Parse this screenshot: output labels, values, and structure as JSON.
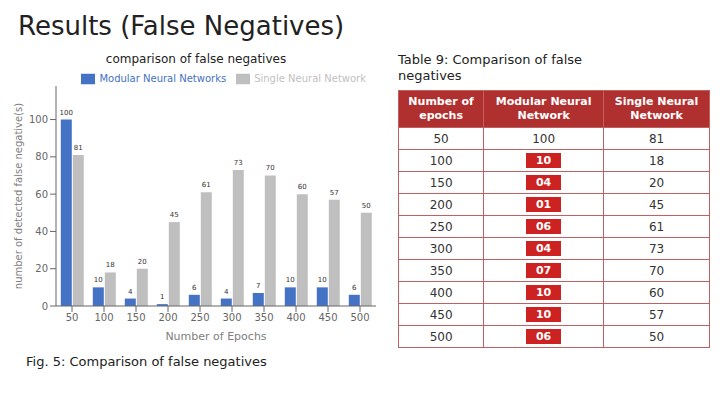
{
  "title": "Results (False Negatives)",
  "caption": "Fig. 5: Comparison of false negatives",
  "chart_data": {
    "type": "bar",
    "title": "comparison of false negatives",
    "x_label": "Number of Epochs",
    "y_label": "number of detected false negative(s)",
    "categories": [
      "50",
      "100",
      "150",
      "200",
      "250",
      "300",
      "350",
      "400",
      "450",
      "500"
    ],
    "series": [
      {
        "name": "Modular Neural Networks",
        "color": "#4472c4",
        "values": [
          100,
          10,
          4,
          1,
          6,
          4,
          7,
          10,
          10,
          6
        ]
      },
      {
        "name": "Single Neural Network",
        "color": "#bfbfbf",
        "values": [
          81,
          18,
          20,
          45,
          61,
          73,
          70,
          60,
          57,
          50
        ]
      }
    ],
    "ylim": [
      0,
      118
    ],
    "yticks": [
      0,
      20,
      40,
      60,
      80,
      100
    ],
    "grid": false,
    "legend": "upper right",
    "data_labels": true
  },
  "table": {
    "title": "Table 9: Comparison of false\nnegatives",
    "headers": [
      "Number of\nepochs",
      "Modular Neural\nNetwork",
      "Single Neural\nNetwork"
    ],
    "header_color": "#b03030",
    "border_color": "#c06060",
    "highlight_color": "#cc2222",
    "rows": [
      [
        50,
        100,
        81
      ],
      [
        100,
        10,
        18
      ],
      [
        150,
        {
          "value": 4,
          "label": "04"
        },
        20
      ],
      [
        200,
        {
          "value": 1,
          "label": "01"
        },
        45
      ],
      [
        250,
        {
          "value": 6,
          "label": "06"
        },
        61
      ],
      [
        300,
        {
          "value": 4,
          "label": "04"
        },
        73
      ],
      [
        350,
        {
          "value": 7,
          "label": "07"
        },
        70
      ],
      [
        400,
        10,
        60
      ],
      [
        450,
        10,
        57
      ],
      [
        500,
        {
          "value": 6,
          "label": "06"
        },
        50
      ]
    ]
  }
}
